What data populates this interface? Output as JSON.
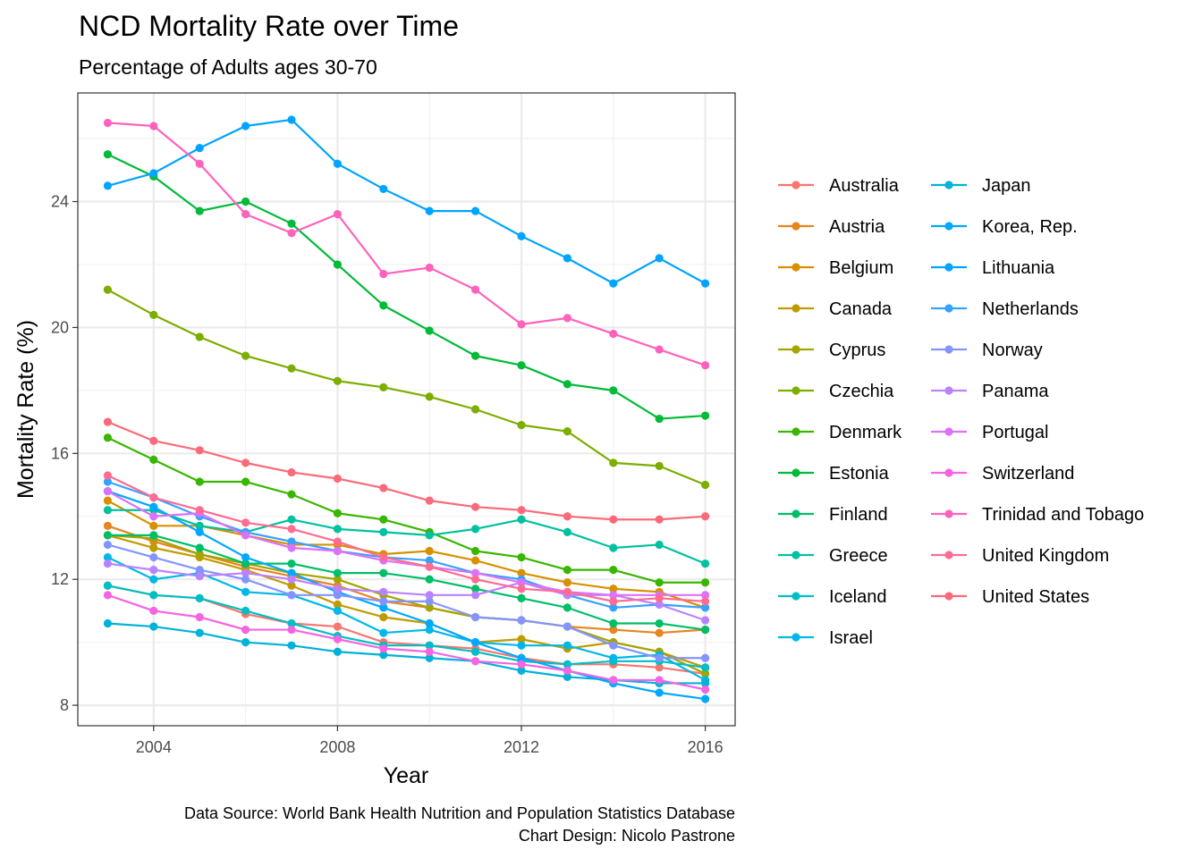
{
  "chart_data": {
    "type": "line",
    "title": "NCD Mortality Rate over Time",
    "subtitle": "Percentage of Adults ages 30-70",
    "xlabel": "Year",
    "ylabel": "Mortality Rate (%)",
    "caption_lines": [
      "Data Source: World Bank Health Nutrition and Population Statistics Database",
      "Chart Design: Nicolo Pastrone"
    ],
    "x": [
      2003,
      2004,
      2005,
      2006,
      2007,
      2008,
      2009,
      2010,
      2011,
      2012,
      2013,
      2014,
      2015,
      2016
    ],
    "xlim": [
      2002.35,
      2016.65
    ],
    "ylim": [
      7.35,
      27.45
    ],
    "x_ticks": [
      2004,
      2008,
      2012,
      2016
    ],
    "y_ticks": [
      8,
      12,
      16,
      20,
      24
    ],
    "grid": true,
    "legend_position": "right",
    "series": [
      {
        "name": "Australia",
        "color": "#F8766D",
        "values": [
          11.8,
          11.5,
          11.4,
          10.9,
          10.6,
          10.5,
          10.0,
          9.9,
          9.8,
          9.5,
          9.3,
          9.3,
          9.2,
          9.0
        ]
      },
      {
        "name": "Austria",
        "color": "#E7851E",
        "values": [
          13.7,
          13.2,
          12.8,
          12.4,
          12.1,
          11.8,
          11.3,
          11.1,
          10.8,
          10.7,
          10.5,
          10.4,
          10.3,
          10.4
        ]
      },
      {
        "name": "Belgium",
        "color": "#D89000",
        "values": [
          14.5,
          13.7,
          13.7,
          13.4,
          13.1,
          13.1,
          12.8,
          12.9,
          12.6,
          12.2,
          11.9,
          11.7,
          11.6,
          11.1
        ]
      },
      {
        "name": "Canada",
        "color": "#C09B00",
        "values": [
          13.4,
          13.0,
          12.7,
          12.3,
          11.8,
          11.2,
          10.8,
          10.6,
          10.0,
          10.1,
          9.8,
          10.0,
          9.7,
          9.2
        ]
      },
      {
        "name": "Cyprus",
        "color": "#A3A500",
        "values": [
          13.4,
          13.3,
          12.8,
          12.5,
          12.2,
          12.0,
          11.5,
          11.1,
          10.8,
          10.7,
          10.5,
          10.0,
          9.7,
          9.0
        ]
      },
      {
        "name": "Czechia",
        "color": "#7CAE00",
        "values": [
          21.2,
          20.4,
          19.7,
          19.1,
          18.7,
          18.3,
          18.1,
          17.8,
          17.4,
          16.9,
          16.7,
          15.7,
          15.6,
          15.0
        ]
      },
      {
        "name": "Denmark",
        "color": "#39B600",
        "values": [
          16.5,
          15.8,
          15.1,
          15.1,
          14.7,
          14.1,
          13.9,
          13.5,
          12.9,
          12.7,
          12.3,
          12.3,
          11.9,
          11.9
        ]
      },
      {
        "name": "Estonia",
        "color": "#00BA38",
        "values": [
          25.5,
          24.8,
          23.7,
          24.0,
          23.3,
          22.0,
          20.7,
          19.9,
          19.1,
          18.8,
          18.2,
          18.0,
          17.1,
          17.2
        ]
      },
      {
        "name": "Finland",
        "color": "#00BE67",
        "values": [
          13.4,
          13.4,
          13.0,
          12.5,
          12.5,
          12.2,
          12.2,
          12.0,
          11.7,
          11.4,
          11.1,
          10.6,
          10.6,
          10.4
        ]
      },
      {
        "name": "Greece",
        "color": "#00C19F",
        "values": [
          14.2,
          14.2,
          13.7,
          13.5,
          13.9,
          13.6,
          13.5,
          13.4,
          13.6,
          13.9,
          13.5,
          13.0,
          13.1,
          12.5
        ]
      },
      {
        "name": "Iceland",
        "color": "#00BFC4",
        "values": [
          11.8,
          11.5,
          11.4,
          11.0,
          10.6,
          10.2,
          9.9,
          9.9,
          9.7,
          9.4,
          9.3,
          9.4,
          9.4,
          9.2
        ]
      },
      {
        "name": "Israel",
        "color": "#00B8E7",
        "values": [
          12.7,
          12.0,
          12.2,
          11.6,
          11.5,
          11.0,
          10.3,
          10.4,
          10.0,
          9.9,
          9.9,
          9.5,
          9.6,
          8.8
        ]
      },
      {
        "name": "Japan",
        "color": "#00B2D7",
        "values": [
          10.6,
          10.5,
          10.3,
          10.0,
          9.9,
          9.7,
          9.6,
          9.5,
          9.4,
          9.1,
          8.9,
          8.8,
          8.7,
          8.7
        ]
      },
      {
        "name": "Korea, Rep.",
        "color": "#00A9FF",
        "values": [
          14.8,
          14.3,
          13.5,
          12.7,
          12.2,
          11.6,
          11.1,
          10.6,
          10.0,
          9.5,
          9.1,
          8.7,
          8.4,
          8.2
        ]
      },
      {
        "name": "Lithuania",
        "color": "#00A4FF",
        "values": [
          24.5,
          24.9,
          25.7,
          26.4,
          26.6,
          25.2,
          24.4,
          23.7,
          23.7,
          22.9,
          22.2,
          21.4,
          22.2,
          21.4
        ]
      },
      {
        "name": "Netherlands",
        "color": "#35A2FF",
        "values": [
          15.1,
          14.6,
          14.0,
          13.5,
          13.2,
          12.9,
          12.7,
          12.6,
          12.2,
          12.0,
          11.5,
          11.1,
          11.2,
          11.1
        ]
      },
      {
        "name": "Norway",
        "color": "#8494FF",
        "values": [
          13.1,
          12.7,
          12.3,
          12.0,
          11.5,
          11.5,
          11.3,
          11.3,
          10.8,
          10.7,
          10.5,
          9.9,
          9.5,
          9.5
        ]
      },
      {
        "name": "Panama",
        "color": "#B983FF",
        "values": [
          12.5,
          12.3,
          12.1,
          12.2,
          12.0,
          11.7,
          11.6,
          11.5,
          11.5,
          11.9,
          11.5,
          11.5,
          11.2,
          10.7
        ]
      },
      {
        "name": "Portugal",
        "color": "#DC71FA",
        "values": [
          14.8,
          14.0,
          14.1,
          13.4,
          13.0,
          12.9,
          12.6,
          12.4,
          12.2,
          11.9,
          11.6,
          11.5,
          11.5,
          11.5
        ]
      },
      {
        "name": "Switzerland",
        "color": "#F564E3",
        "values": [
          11.5,
          11.0,
          10.8,
          10.4,
          10.4,
          10.1,
          9.8,
          9.7,
          9.4,
          9.3,
          9.1,
          8.8,
          8.8,
          8.5
        ]
      },
      {
        "name": "Trinidad and Tobago",
        "color": "#FF62BC",
        "values": [
          26.5,
          26.4,
          25.2,
          23.6,
          23.0,
          23.6,
          21.7,
          21.9,
          21.2,
          20.1,
          20.3,
          19.8,
          19.3,
          18.8
        ]
      },
      {
        "name": "United Kingdom",
        "color": "#FF6C91",
        "values": [
          15.3,
          14.6,
          14.2,
          13.8,
          13.6,
          13.2,
          12.7,
          12.4,
          12.0,
          11.7,
          11.6,
          11.3,
          11.4,
          11.3
        ]
      },
      {
        "name": "United States",
        "color": "#FB6A7A",
        "values": [
          17.0,
          16.4,
          16.1,
          15.7,
          15.4,
          15.2,
          14.9,
          14.5,
          14.3,
          14.2,
          14.0,
          13.9,
          13.9,
          14.0
        ]
      }
    ]
  }
}
